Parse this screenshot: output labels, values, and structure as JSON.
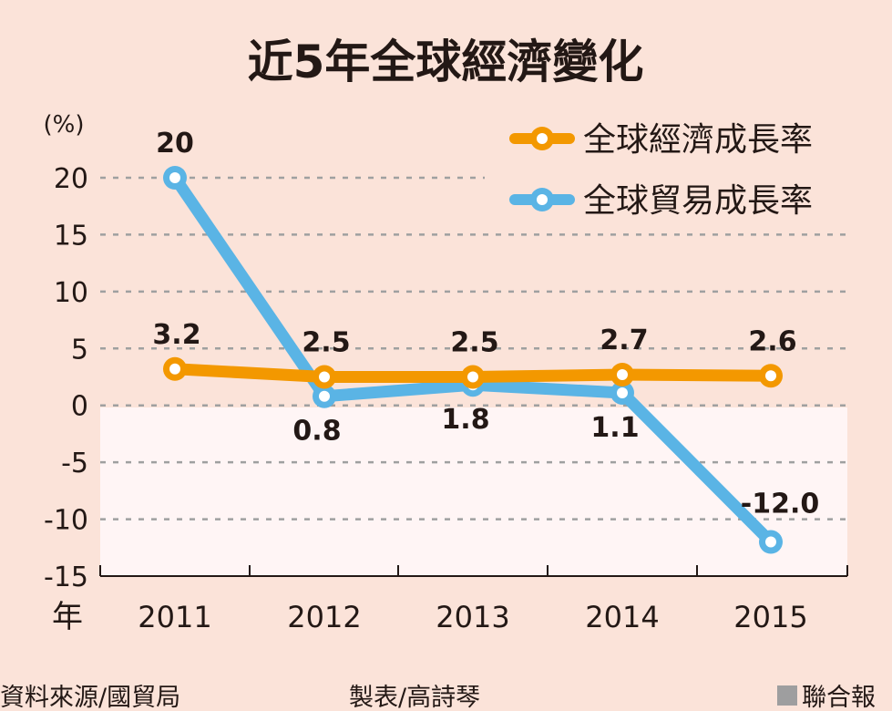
{
  "chart_data": {
    "type": "line",
    "title": "近5年全球經濟變化",
    "ylabel": "(%)",
    "xlabel": "年",
    "categories": [
      "2011",
      "2012",
      "2013",
      "2014",
      "2015"
    ],
    "ylim": [
      -15,
      20
    ],
    "yticks": [
      20,
      15,
      10,
      5,
      0,
      -5,
      -10,
      -15
    ],
    "grid": true,
    "legend_position": "top-right",
    "series": [
      {
        "name": "全球經濟成長率",
        "color": "#f39800",
        "values": [
          3.2,
          2.5,
          2.5,
          2.7,
          2.6
        ],
        "labels": [
          "3.2",
          "2.5",
          "2.5",
          "2.7",
          "2.6"
        ]
      },
      {
        "name": "全球貿易成長率",
        "color": "#5ab4e5",
        "values": [
          20,
          0.8,
          1.8,
          1.1,
          -12.0
        ],
        "labels": [
          "20",
          "0.8",
          "1.8",
          "1.1",
          "-12.0"
        ]
      }
    ]
  },
  "footer": {
    "source": "資料來源/國貿局",
    "maker": "製表/高詩琴",
    "brand": "聯合報"
  }
}
